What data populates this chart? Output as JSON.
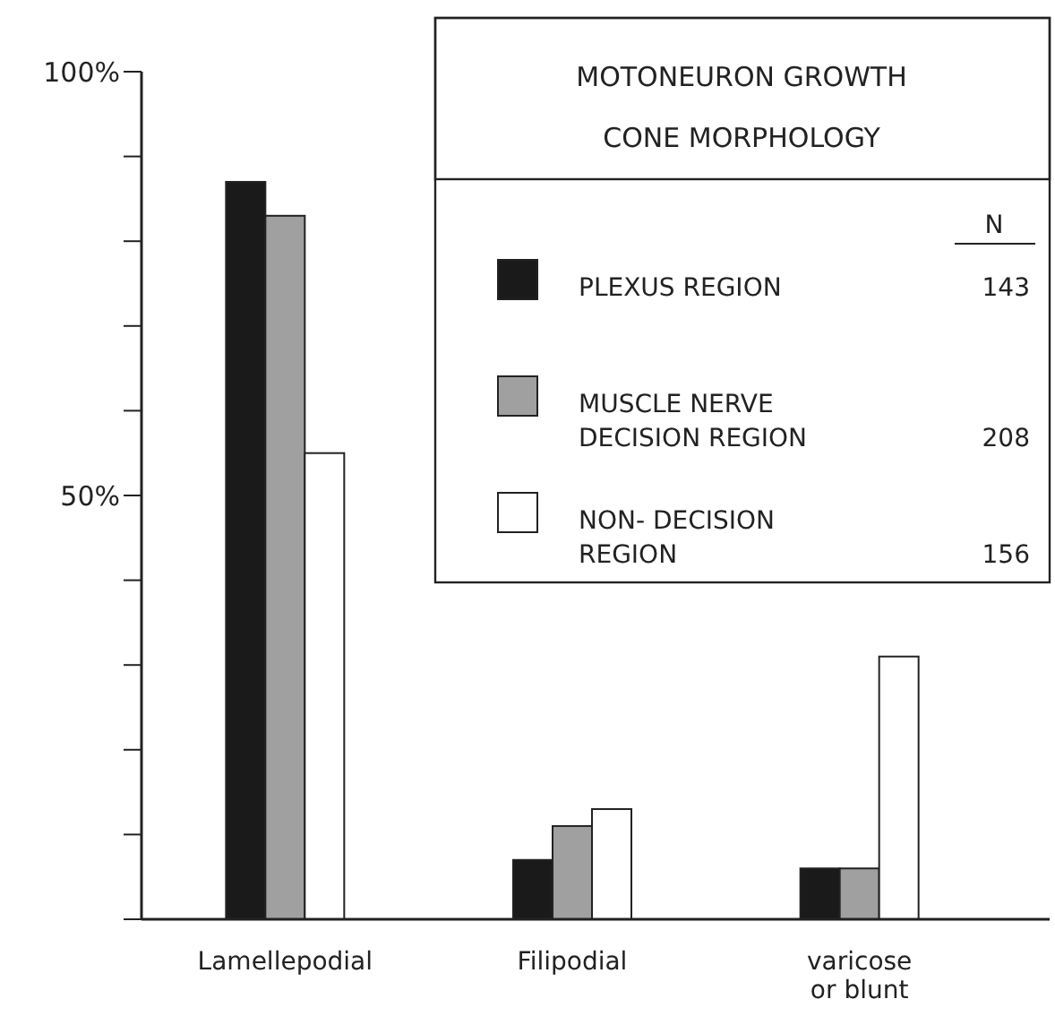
{
  "chart_data": {
    "type": "bar",
    "legend_title": "MOTONEURON GROWTH CONE MORPHOLOGY",
    "categories": [
      "Lamellepodial",
      "Filipodial",
      "varicose\nor blunt"
    ],
    "series": [
      {
        "name": "PLEXUS REGION",
        "color": "#1a1a1a",
        "values": [
          87,
          7,
          6
        ]
      },
      {
        "name": "MUSCLE NERVE\nDECISION REGION",
        "color": "#a0a0a0",
        "values": [
          83,
          11,
          6
        ]
      },
      {
        "name": "NON- DECISION\nREGION",
        "color": "#ffffff",
        "values": [
          55,
          13,
          31
        ]
      }
    ],
    "ylim": [
      0,
      100
    ],
    "yticks": [
      {
        "value": 0,
        "label": null
      },
      {
        "value": 10,
        "label": null
      },
      {
        "value": 20,
        "label": null
      },
      {
        "value": 30,
        "label": null
      },
      {
        "value": 40,
        "label": null
      },
      {
        "value": 50,
        "label": "50%"
      },
      {
        "value": 60,
        "label": null
      },
      {
        "value": 70,
        "label": null
      },
      {
        "value": 80,
        "label": null
      },
      {
        "value": 90,
        "label": null
      },
      {
        "value": 100,
        "label": "100%"
      }
    ],
    "legend": "top right",
    "annotations": [
      "N",
      "143",
      "208",
      "156"
    ]
  }
}
